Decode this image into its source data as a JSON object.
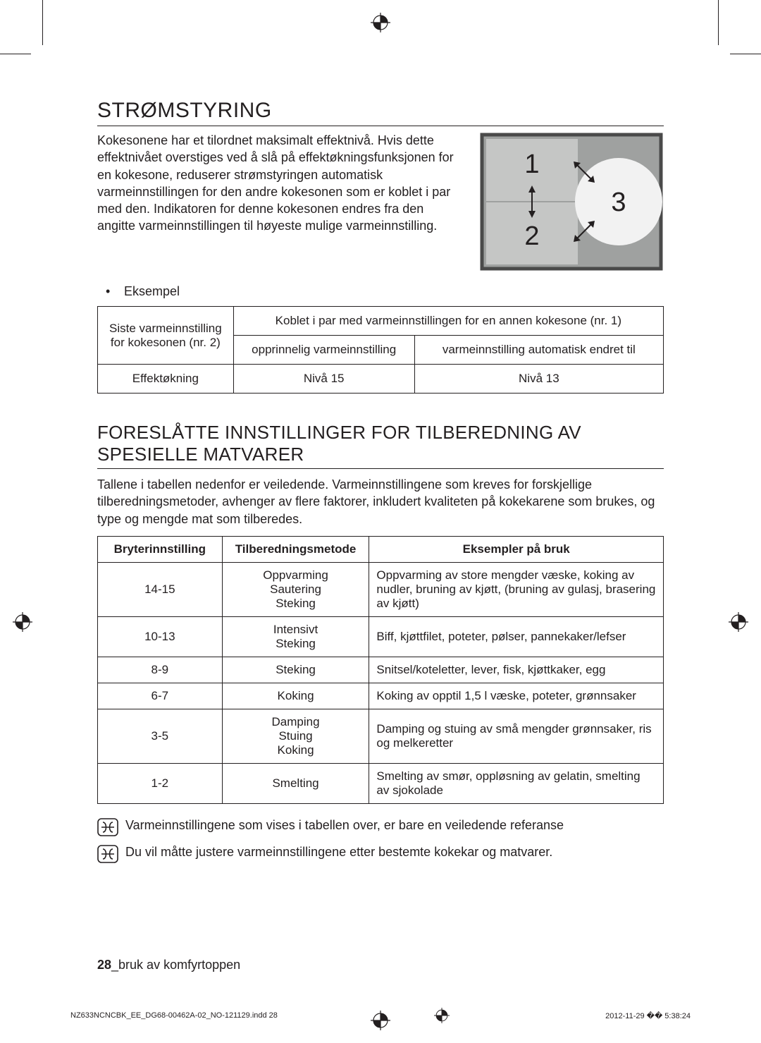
{
  "colors": {
    "text": "#231f20",
    "bg": "#ffffff",
    "diag_bg": "#9fa1a0",
    "diag_shade": "#c5c6c5",
    "diag_circle": "#f2f2f2",
    "diag_border": "#4a4a4a"
  },
  "section1": {
    "title": "STRØMSTYRING",
    "body": "Kokesonene har et tilordnet maksimalt effektnivå. Hvis dette effektnivået overstiges ved å slå på effektøkningsfunksjonen for en kokesone, reduserer strømstyringen automatisk varmeinnstillingen for den andre kokesonen som er koblet i par med den. Indikatoren for denne kokesonen endres fra den angitte varmeinnstillingen til høyeste mulige varmeinnstilling.",
    "bullet": "Eksempel",
    "diagram": {
      "labels": [
        "1",
        "2",
        "3"
      ]
    },
    "table": {
      "row0": {
        "c0a": "Siste varmeinnstilling",
        "c0b": "for kokesonen (nr. 2)",
        "c1": "Koblet i par med varmeinnstillingen for en annen kokesone (nr. 1)"
      },
      "row1": {
        "c1": "opprinnelig varmeinnstilling",
        "c2": "varmeinnstilling automatisk endret til"
      },
      "row2": {
        "c0": "Effektøkning",
        "c1": "Nivå 15",
        "c2": "Nivå 13"
      }
    }
  },
  "section2": {
    "title": "FORESLÅTTE INNSTILLINGER FOR TILBEREDNING AV SPESIELLE MATVARER",
    "body": "Tallene i tabellen nedenfor er veiledende. Varmeinnstillingene som kreves for forskjellige tilberedningsmetoder, avhenger av flere faktorer, inkludert kvaliteten på kokekarene som brukes, og type og mengde mat som tilberedes.",
    "table": {
      "columns": [
        "Bryterinnstilling",
        "Tilberedningsmetode",
        "Eksempler på bruk"
      ],
      "col_widths": [
        "22%",
        "26%",
        "52%"
      ],
      "rows": [
        {
          "c0": "14-15",
          "c1": "Oppvarming\nSautering\nSteking",
          "c2": "Oppvarming av store mengder væske, koking av nudler, bruning av kjøtt, (bruning av gulasj, brasering av kjøtt)"
        },
        {
          "c0": "10-13",
          "c1": "Intensivt\nSteking",
          "c2": "Biff, kjøttfilet, poteter, pølser, pannekaker/lefser"
        },
        {
          "c0": "8-9",
          "c1": "Steking",
          "c2": "Snitsel/koteletter, lever, fisk, kjøttkaker, egg"
        },
        {
          "c0": "6-7",
          "c1": "Koking",
          "c2": "Koking av opptil 1,5 l væske, poteter, grønnsaker"
        },
        {
          "c0": "3-5",
          "c1": "Damping\nStuing\nKoking",
          "c2": "Damping og stuing av små mengder grønnsaker, ris og melkeretter"
        },
        {
          "c0": "1-2",
          "c1": "Smelting",
          "c2": "Smelting av smør, oppløsning av gelatin, smelting av sjokolade"
        }
      ]
    },
    "notes": [
      "Varmeinnstillingene som vises i tabellen over, er bare en veiledende referanse",
      "Du vil måtte justere varmeinnstillingene etter bestemte kokekar og matvarer."
    ]
  },
  "footer": {
    "page": "28",
    "label": "_bruk av komfyrtoppen"
  },
  "printline": {
    "file": "NZ633NCNCBK_EE_DG68-00462A-02_NO-121129.indd   28",
    "timestamp": "2012-11-29   �� 5:38:24"
  }
}
